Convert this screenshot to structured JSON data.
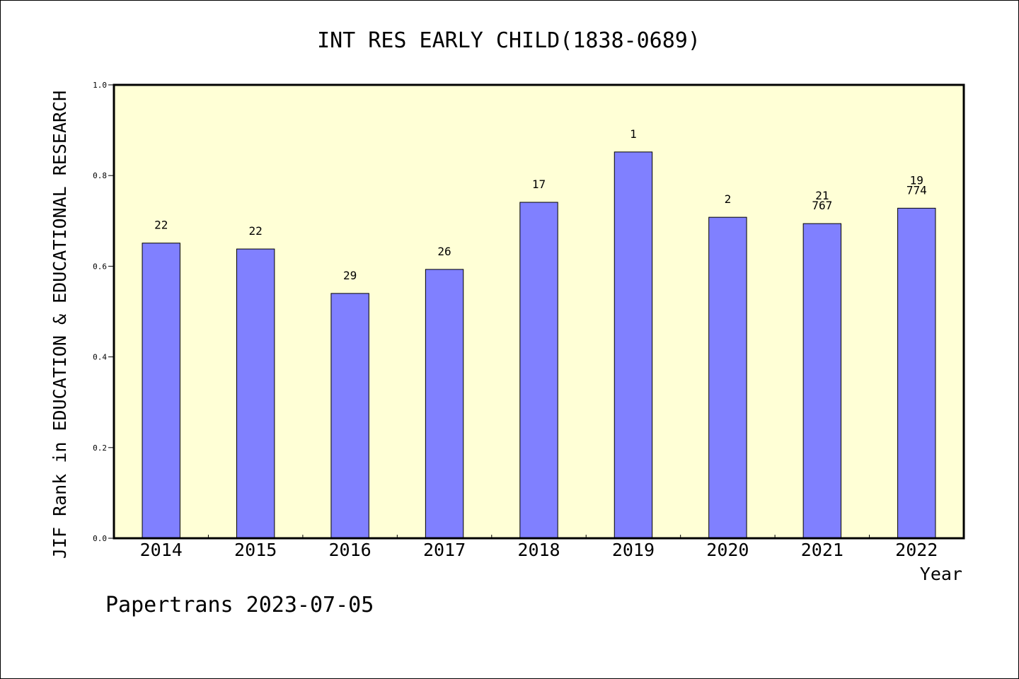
{
  "chart_data": {
    "type": "bar",
    "title": "INT RES EARLY CHILD(1838-0689)",
    "xlabel": "Year",
    "ylabel": "JIF Rank in EDUCATION & EDUCATIONAL RESEARCH",
    "ylim": [
      0,
      1.0
    ],
    "yticks": [
      "0.0",
      "0.2",
      "0.4",
      "0.6",
      "0.8",
      "1.0"
    ],
    "categories": [
      "2014",
      "2015",
      "2016",
      "2017",
      "2018",
      "2019",
      "2020",
      "2021",
      "2022"
    ],
    "values": [
      0.651,
      0.638,
      0.54,
      0.593,
      0.741,
      0.852,
      0.708,
      0.694,
      0.728
    ],
    "labels": [
      [
        "22"
      ],
      [
        "22"
      ],
      [
        "29"
      ],
      [
        "26"
      ],
      [
        "17"
      ],
      [
        "1"
      ],
      [
        "2"
      ],
      [
        "21",
        "767"
      ],
      [
        "19",
        "774"
      ]
    ],
    "grid": false,
    "plot_background": "#ffffd6",
    "bar_color": "#8080ff"
  },
  "footer": "Papertrans 2023-07-05"
}
